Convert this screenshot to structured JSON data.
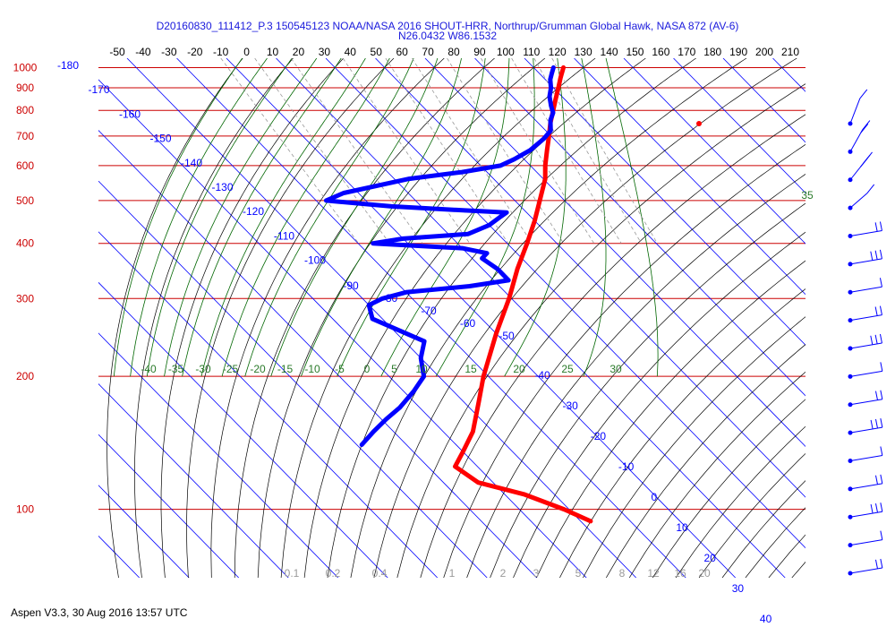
{
  "header": {
    "line1": "D20160830_111412_P.3 150545123 NOAA/NASA 2016 SHOUT-HRR, Northrup/Grumman Global Hawk, NASA 872 (AV-6)",
    "line2": "N26.0432 W86.1532"
  },
  "footer": {
    "text": "Aspen V3.3, 30 Aug 2016  13:57 UTC"
  },
  "chart_data": {
    "type": "line",
    "subtype": "skew-T log-P diagram",
    "title": "D20160830_111412_P.3 150545123 NOAA/NASA 2016 SHOUT-HRR, Northrup/Grumman Global Hawk, NASA 872 (AV-6)",
    "subtitle": "N26.0432 W86.1532",
    "top_axis_ticks": [
      "-50",
      "-40",
      "-30",
      "-20",
      "-10",
      "0",
      "10",
      "20",
      "30",
      "40",
      "50",
      "60",
      "70",
      "80",
      "90",
      "100",
      "110",
      "120",
      "130",
      "140",
      "150",
      "160",
      "170",
      "180",
      "190",
      "200",
      "210"
    ],
    "top_axis_range": [
      -50,
      210
    ],
    "pressure_levels": [
      "100",
      "200",
      "300",
      "400",
      "500",
      "600",
      "700",
      "800",
      "900",
      "1000"
    ],
    "pressure_range": [
      70,
      1050
    ],
    "isotherm_labels": [
      "-180",
      "-170",
      "-160",
      "-150",
      "-140",
      "-130",
      "-120",
      "-110",
      "-100",
      "-90",
      "-80",
      "-70",
      "-60",
      "-50",
      "-40",
      "-30",
      "-20",
      "-10",
      "0",
      "10",
      "20",
      "30",
      "40"
    ],
    "mixing_ratio_labels": [
      "0.1",
      "0.2",
      "0.4",
      "1",
      "2",
      "3",
      "5",
      "8",
      "12",
      "16",
      "20"
    ],
    "theta_e_labels": [
      "-40",
      "-35",
      "-30",
      "-25",
      "-20",
      "-15",
      "-10",
      "-5",
      "0",
      "5",
      "10",
      "15",
      "20",
      "25",
      "30",
      "35"
    ],
    "colors": {
      "temperature": "#ff0000",
      "dewpoint": "#0000ff",
      "isobar": "#cc0000",
      "isotherm": "#0000ff",
      "dry_adiabat": "#000000",
      "moist_adiabat": "#006600",
      "mixing_ratio": "#999999",
      "wind": "#0000ff"
    },
    "series": [
      {
        "name": "",
        "color": "#ff0000",
        "points": [
          [
            1000,
            26.0
          ],
          [
            950,
            23.5
          ],
          [
            900,
            21.0
          ],
          [
            850,
            18.3
          ],
          [
            800,
            15.5
          ],
          [
            750,
            12.5
          ],
          [
            700,
            9.6
          ],
          [
            650,
            6.4
          ],
          [
            600,
            3.0
          ],
          [
            560,
            0.4
          ],
          [
            500,
            -5.0
          ],
          [
            450,
            -10.0
          ],
          [
            400,
            -16.0
          ],
          [
            350,
            -23.0
          ],
          [
            300,
            -30.5
          ],
          [
            250,
            -40.0
          ],
          [
            200,
            -51.0
          ],
          [
            175,
            -57.0
          ],
          [
            150,
            -64.0
          ],
          [
            135,
            -70.0
          ],
          [
            125,
            -74.5
          ],
          [
            115,
            -73.0
          ],
          [
            108,
            -66.0
          ],
          [
            100,
            -61.0
          ],
          [
            94,
            -58.0
          ]
        ]
      },
      {
        "name": "",
        "color": "#0000ff",
        "points": [
          [
            1000,
            24.0
          ],
          [
            970,
            22.5
          ],
          [
            940,
            21.0
          ],
          [
            900,
            19.5
          ],
          [
            860,
            17.5
          ],
          [
            820,
            16.0
          ],
          [
            790,
            15.0
          ],
          [
            760,
            13.0
          ],
          [
            720,
            11.0
          ],
          [
            690,
            8.0
          ],
          [
            650,
            3.0
          ],
          [
            620,
            -2.0
          ],
          [
            600,
            -6.0
          ],
          [
            580,
            -15.0
          ],
          [
            560,
            -27.0
          ],
          [
            520,
            -43.0
          ],
          [
            500,
            -48.0
          ],
          [
            485,
            -36.0
          ],
          [
            475,
            -22.0
          ],
          [
            470,
            -14.0
          ],
          [
            460,
            -16.0
          ],
          [
            440,
            -20.0
          ],
          [
            420,
            -26.0
          ],
          [
            410,
            -40.0
          ],
          [
            400,
            -47.0
          ],
          [
            390,
            -30.0
          ],
          [
            380,
            -26.0
          ],
          [
            370,
            -28.0
          ],
          [
            350,
            -27.0
          ],
          [
            330,
            -27.0
          ],
          [
            320,
            -36.0
          ],
          [
            310,
            -50.0
          ],
          [
            300,
            -56.0
          ],
          [
            290,
            -60.0
          ],
          [
            270,
            -62.0
          ],
          [
            240,
            -56.0
          ],
          [
            220,
            -60.0
          ],
          [
            200,
            -63.0
          ],
          [
            185,
            -68.0
          ],
          [
            170,
            -74.0
          ],
          [
            160,
            -79.0
          ],
          [
            150,
            -84.0
          ],
          [
            140,
            -89.0
          ]
        ]
      }
    ],
    "wind_barbs_count": 17,
    "grid": true,
    "legend": "none"
  }
}
